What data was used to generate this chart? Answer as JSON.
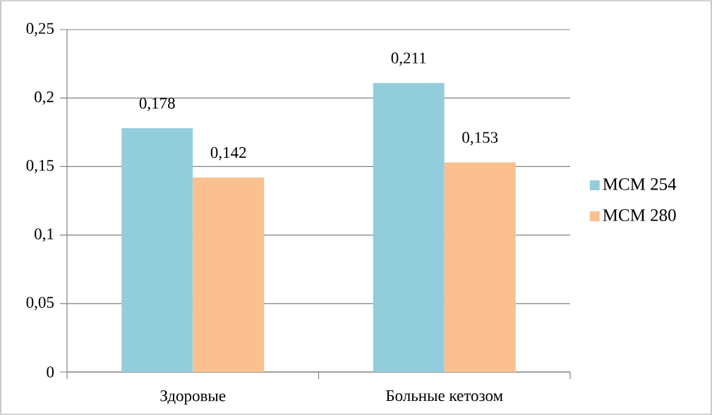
{
  "chart_data": {
    "type": "bar",
    "categories": [
      "Здоровые",
      "Больные кетозом"
    ],
    "series": [
      {
        "name": "MCM 254",
        "color": "#92cddc",
        "values": [
          0.178,
          0.211
        ],
        "value_labels": [
          "0,178",
          "0,211"
        ]
      },
      {
        "name": "MCM 280",
        "color": "#fac090",
        "values": [
          0.142,
          0.153
        ],
        "value_labels": [
          "0,142",
          "0,153"
        ]
      }
    ],
    "ylim": [
      0,
      0.25
    ],
    "yticks": [
      {
        "value": 0,
        "label": "0"
      },
      {
        "value": 0.05,
        "label": "0,05"
      },
      {
        "value": 0.1,
        "label": "0,1"
      },
      {
        "value": 0.15,
        "label": "0,15"
      },
      {
        "value": 0.2,
        "label": "0,2"
      },
      {
        "value": 0.25,
        "label": "0,25"
      }
    ],
    "grid": "y",
    "legend": "right"
  }
}
